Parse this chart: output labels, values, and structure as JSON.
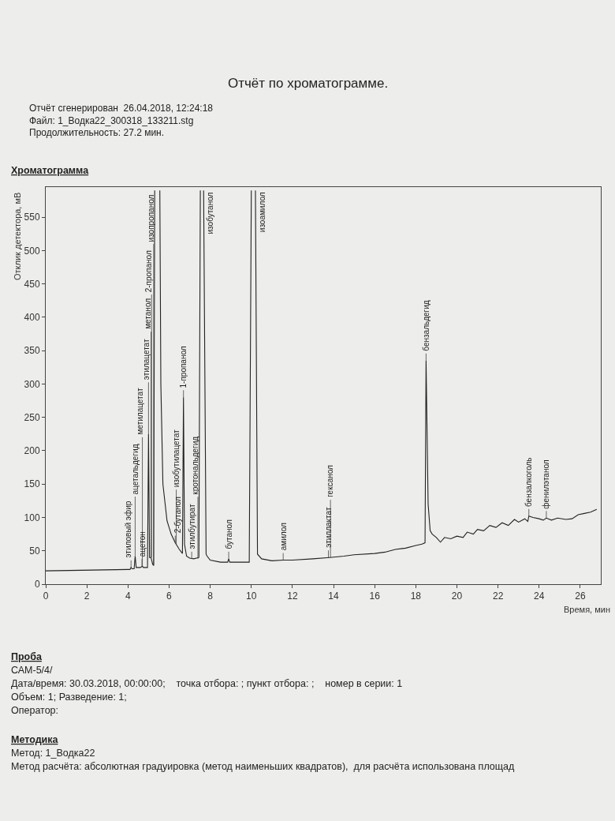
{
  "chart_data": {
    "type": "line",
    "title": "Отчёт по хроматограмме.",
    "subtitle": "Отчёт сгенерирован  26.04.2018, 12:24:18\nФайл: 1_Водка22_300318_133211.stg\nПродолжительность: 27.2 мин.",
    "xlabel": "Время, мин",
    "ylabel": "Отклик детектора, мВ",
    "x": [
      0,
      4.0,
      4.1,
      4.15,
      4.2,
      4.3,
      4.35,
      4.4,
      4.6,
      4.7,
      4.75,
      4.95,
      5.0,
      5.05,
      5.12,
      5.2,
      5.25,
      5.3,
      5.42,
      5.55,
      5.6,
      5.7,
      5.9,
      6.1,
      6.3,
      6.5,
      6.65,
      6.7,
      6.75,
      6.85,
      7.0,
      7.2,
      7.45,
      7.52,
      7.6,
      7.68,
      7.8,
      7.85,
      8.0,
      8.5,
      8.85,
      8.9,
      8.95,
      9.9,
      10.0,
      10.1,
      10.2,
      10.3,
      10.5,
      11,
      11.55,
      12,
      13,
      13.8,
      14.5,
      15,
      16,
      16.5,
      17,
      17.5,
      18,
      18.3,
      18.45,
      18.5,
      18.6,
      18.7,
      18.8,
      19.0,
      19.2,
      19.4,
      19.7,
      20.0,
      20.3,
      20.5,
      20.8,
      21,
      21.3,
      21.6,
      21.9,
      22.2,
      22.5,
      22.8,
      23.0,
      23.3,
      23.45,
      23.5,
      23.7,
      24.0,
      24.2,
      24.35,
      24.6,
      24.9,
      25.3,
      25.6,
      25.9,
      26.2,
      26.5,
      26.8
    ],
    "series": [
      {
        "color": "#222222",
        "values": [
          20,
          22,
          22,
          25,
          23,
          23,
          42,
          25,
          25,
          27,
          25,
          25,
          225,
          40,
          40,
          30,
          28,
          590,
          null,
          590,
          300,
          150,
          95,
          75,
          62,
          52,
          46,
          280,
          60,
          42,
          39,
          38,
          40,
          590,
          null,
          590,
          45,
          42,
          36,
          33,
          33,
          38,
          33,
          33,
          590,
          null,
          590,
          45,
          38,
          35,
          36,
          36,
          38,
          40,
          42,
          44,
          46,
          48,
          52,
          54,
          58,
          60,
          62,
          335,
          120,
          80,
          75,
          70,
          63,
          70,
          68,
          72,
          70,
          78,
          75,
          82,
          80,
          88,
          85,
          92,
          88,
          97,
          93,
          98,
          94,
          102,
          100,
          98,
          96,
          99,
          96,
          99,
          97,
          98,
          104,
          106,
          108,
          112
        ]
      }
    ],
    "xlim": [
      0,
      27
    ],
    "xticks": [
      0,
      2,
      4,
      6,
      8,
      10,
      12,
      14,
      16,
      18,
      20,
      22,
      24,
      26
    ],
    "ylim": [
      0,
      595
    ],
    "yticks": [
      0,
      50,
      100,
      150,
      200,
      250,
      300,
      350,
      400,
      450,
      500,
      550
    ],
    "grid": false,
    "marker": "none",
    "line_style": "solid",
    "annotations": [
      "Хроматограмма",
      "Проба",
      "САМ-5/4/",
      "Дата/время: 30.03.2018, 00:00:00;    точка отбора: ; пункт отбора: ;    номер в серии: 1",
      "Объем: 1; Разведение: 1;",
      "Оператор:",
      "Методика",
      "Метод: 1_Водка22",
      "Метод расчёта: абсолютная градуировка (метод наименьших квадратов),  для расчёта использована площад",
      {
        "text": "этиловый эфир",
        "x": 4.15,
        "y": 25
      },
      {
        "text": "ацетальдегид",
        "x": 4.35,
        "y": 42
      },
      {
        "text": "ацетон",
        "x": 4.68,
        "y": 27
      },
      {
        "text": "метилацетат",
        "x": 4.7,
        "y": 27
      },
      {
        "text": "этилацетат",
        "x": 5.0,
        "y": 225
      },
      {
        "text": "метанол",
        "x": 5.12,
        "y": 40
      },
      {
        "text": "2-пропанол",
        "x": 5.15,
        "y": 40
      },
      {
        "text": "изопропанол",
        "x": 5.25,
        "y": 28
      },
      {
        "text": "2-бутанол",
        "x": 6.3,
        "y": 62
      },
      {
        "text": "изобутилацетат",
        "x": 6.35,
        "y": 60
      },
      {
        "text": "1-пропанол",
        "x": 6.7,
        "y": 280
      },
      {
        "text": "этилбутират",
        "x": 7.1,
        "y": 38
      },
      {
        "text": "кротональдегид",
        "x": 7.4,
        "y": 38
      },
      {
        "text": "изобутанол",
        "x": 7.68,
        "y": 590
      },
      {
        "text": "бутанол",
        "x": 8.9,
        "y": 38
      },
      {
        "text": "изоамилол",
        "x": 10.2,
        "y": 590
      },
      {
        "text": "амилол",
        "x": 11.55,
        "y": 36
      },
      {
        "text": "этиллактат",
        "x": 13.75,
        "y": 40
      },
      {
        "text": "гексанол",
        "x": 13.85,
        "y": 40
      },
      {
        "text": "бензальдегид",
        "x": 18.5,
        "y": 335
      },
      {
        "text": "бензалкоголь",
        "x": 23.5,
        "y": 102
      },
      {
        "text": "фенилэтанол",
        "x": 24.35,
        "y": 99
      }
    ]
  }
}
